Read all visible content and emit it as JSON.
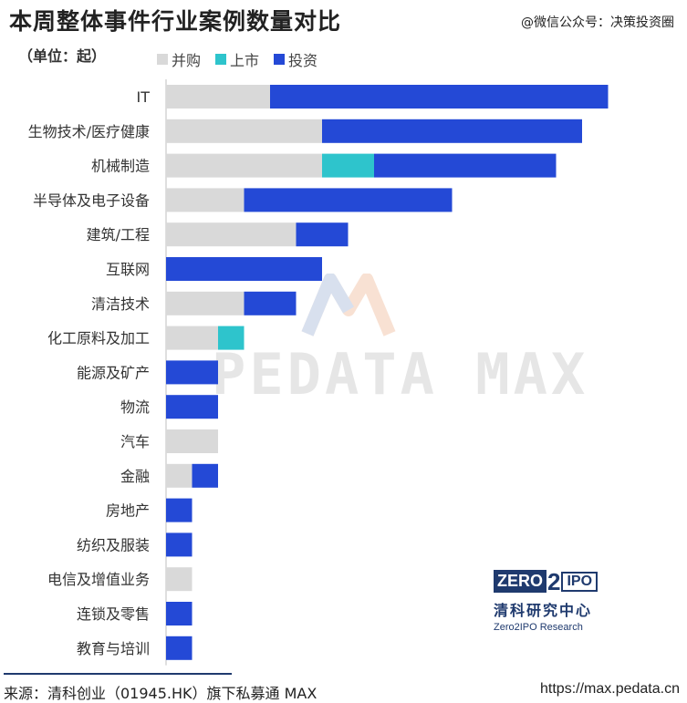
{
  "header": {
    "title": "本周整体事件行业案例数量对比",
    "wechat": "@微信公众号：决策投资圈",
    "unit": "（单位：起）"
  },
  "colors": {
    "acquisition": "#d9d9d9",
    "listing": "#2ec4cc",
    "investment": "#2449d6",
    "logo": "#1f3a6e"
  },
  "chart_data": {
    "type": "bar",
    "orientation": "horizontal",
    "stacked": true,
    "legend_position": "top",
    "categories": [
      "IT",
      "生物技术/医疗健康",
      "机械制造",
      "半导体及电子设备",
      "建筑/工程",
      "互联网",
      "清洁技术",
      "化工原料及加工",
      "能源及矿产",
      "物流",
      "汽车",
      "金融",
      "房地产",
      "纺织及服装",
      "电信及增值业务",
      "连锁及零售",
      "教育与培训"
    ],
    "series": [
      {
        "name": "并购",
        "color": "#d9d9d9",
        "values": [
          4,
          6,
          6,
          3,
          5,
          0,
          3,
          2,
          0,
          0,
          2,
          1,
          0,
          0,
          1,
          0,
          0
        ]
      },
      {
        "name": "上市",
        "color": "#2ec4cc",
        "values": [
          0,
          0,
          2,
          0,
          0,
          0,
          0,
          1,
          0,
          0,
          0,
          0,
          0,
          0,
          0,
          0,
          0
        ]
      },
      {
        "name": "投资",
        "color": "#2449d6",
        "values": [
          13,
          10,
          7,
          8,
          2,
          6,
          2,
          0,
          2,
          2,
          0,
          1,
          1,
          1,
          0,
          1,
          1
        ]
      }
    ]
  },
  "watermark": {
    "text": "PEDATA MAX"
  },
  "logo": {
    "zero": "ZERO",
    "two": "2",
    "ipo": "IPO",
    "cn": "清科研究中心",
    "en": "Zero2IPO Research"
  },
  "footer": {
    "source": "来源：清科创业（01945.HK）旗下私募通 MAX",
    "url": "https://max.pedata.cn"
  }
}
